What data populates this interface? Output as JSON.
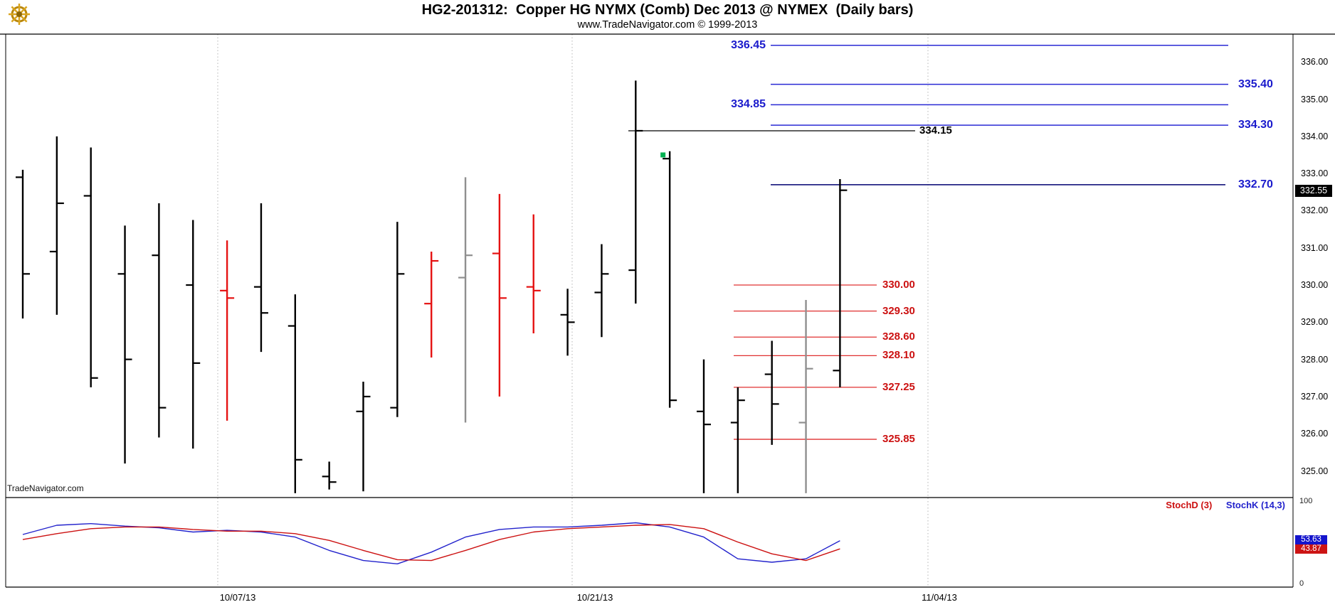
{
  "header": {
    "title": "HG2-201312:  Copper HG NYMX (Comb) Dec 2013 @ NYMEX  (Daily bars)",
    "subtitle": "www.TradeNavigator.com © 1999-2013",
    "logo_icon": "tradenavigator-gold-wheel-logo"
  },
  "watermark": "TradeNavigator.com",
  "axes": {
    "price_labels": [
      "336.00",
      "335.00",
      "334.00",
      "333.00",
      "332.00",
      "331.00",
      "330.00",
      "329.00",
      "328.00",
      "327.00",
      "326.00",
      "325.00"
    ],
    "date_labels": [
      "10/07/13",
      "10/21/13",
      "11/04/13"
    ],
    "stoch_scale": {
      "top": "100",
      "bottom": "0"
    }
  },
  "badges": {
    "last_price": "332.55",
    "stoch_k": "53.63",
    "stoch_d": "43.87"
  },
  "stoch_legend": {
    "d": "StochD (3)",
    "k": "StochK (14,3)"
  },
  "colors": {
    "level_blue": "#2a2ad4",
    "level_navy": "#000070",
    "level_black": "#000000",
    "level_red": "#e03030",
    "bar_black": "#000000",
    "bar_red": "#e51212",
    "bar_gray": "#8f8f8f",
    "stoch_k": "#2222cc",
    "stoch_d": "#cc1111",
    "signal_green": "#00b050",
    "last_badge_bg": "#000000",
    "stoch_k_badge_bg": "#1414cc",
    "stoch_d_badge_bg": "#cc1414"
  },
  "chart_data": {
    "type": "bar",
    "subtype": "ohlc-daily-bars",
    "title": "HG2-201312:  Copper HG NYMX (Comb) Dec 2013 @ NYMEX  (Daily bars)",
    "symbol": "HG2-201312",
    "instrument": "Copper HG NYMX (Comb) Dec 2013 @ NYMEX",
    "interval": "Daily bars",
    "y_axis": {
      "range": [
        324.25,
        336.75
      ],
      "tick_step": 1.0,
      "tick_min": 325.0,
      "tick_max": 336.0,
      "grid": "off"
    },
    "x_axis": {
      "gridline_labels": [
        "10/07/13",
        "10/21/13",
        "11/04/13"
      ],
      "gridline_style": "dotted"
    },
    "last_price": 332.55,
    "bars": [
      {
        "o": 332.9,
        "h": 333.1,
        "l": 329.1,
        "c": 330.3,
        "color": "black"
      },
      {
        "o": 330.9,
        "h": 334.0,
        "l": 329.2,
        "c": 332.2,
        "color": "black"
      },
      {
        "o": 332.4,
        "h": 333.7,
        "l": 327.25,
        "c": 327.5,
        "color": "black"
      },
      {
        "o": 330.3,
        "h": 331.6,
        "l": 325.2,
        "c": 328.0,
        "color": "black"
      },
      {
        "o": 330.8,
        "h": 332.2,
        "l": 325.9,
        "c": 326.7,
        "color": "black"
      },
      {
        "o": 330.0,
        "h": 331.75,
        "l": 325.6,
        "c": 327.9,
        "color": "black"
      },
      {
        "o": 329.85,
        "h": 331.2,
        "l": 326.35,
        "c": 329.65,
        "color": "red"
      },
      {
        "o": 329.95,
        "h": 332.2,
        "l": 328.2,
        "c": 329.25,
        "color": "black"
      },
      {
        "o": 328.9,
        "h": 329.75,
        "l": 324.4,
        "c": 325.3,
        "color": "black"
      },
      {
        "o": 324.85,
        "h": 325.25,
        "l": 324.5,
        "c": 324.7,
        "color": "black"
      },
      {
        "o": 326.6,
        "h": 327.4,
        "l": 324.45,
        "c": 327.0,
        "color": "black"
      },
      {
        "o": 326.7,
        "h": 331.7,
        "l": 326.45,
        "c": 330.3,
        "color": "black"
      },
      {
        "o": 329.5,
        "h": 330.9,
        "l": 328.05,
        "c": 330.65,
        "color": "red"
      },
      {
        "o": 330.2,
        "h": 332.9,
        "l": 326.3,
        "c": 330.8,
        "color": "gray"
      },
      {
        "o": 330.85,
        "h": 332.45,
        "l": 327.0,
        "c": 329.65,
        "color": "red"
      },
      {
        "o": 329.95,
        "h": 331.9,
        "l": 328.7,
        "c": 329.85,
        "color": "red"
      },
      {
        "o": 329.2,
        "h": 329.9,
        "l": 328.1,
        "c": 329.0,
        "color": "black"
      },
      {
        "o": 329.8,
        "h": 331.1,
        "l": 328.6,
        "c": 330.3,
        "color": "black"
      },
      {
        "o": 330.4,
        "h": 335.5,
        "l": 329.5,
        "c": 334.15,
        "color": "black"
      },
      {
        "o": 333.4,
        "h": 333.6,
        "l": 326.7,
        "c": 326.9,
        "color": "black"
      },
      {
        "o": 326.6,
        "h": 328.0,
        "l": 324.4,
        "c": 326.25,
        "color": "black"
      },
      {
        "o": 326.3,
        "h": 327.25,
        "l": 324.4,
        "c": 326.9,
        "color": "black"
      },
      {
        "o": 327.6,
        "h": 328.5,
        "l": 325.7,
        "c": 326.8,
        "color": "black"
      },
      {
        "o": 326.3,
        "h": 329.6,
        "l": 324.4,
        "c": 327.75,
        "color": "gray"
      },
      {
        "o": 327.7,
        "h": 332.85,
        "l": 327.25,
        "c": 332.55,
        "color": "black"
      }
    ],
    "signal_marker": {
      "bar_index": 19,
      "price": 333.5,
      "color": "#00b050",
      "shape": "square"
    },
    "levels": [
      {
        "label": "336.45",
        "price": 336.45,
        "family": "blue",
        "label_side": "left"
      },
      {
        "label": "335.40",
        "price": 335.4,
        "family": "blue",
        "label_side": "right"
      },
      {
        "label": "334.85",
        "price": 334.85,
        "family": "blue",
        "label_side": "left"
      },
      {
        "label": "334.30",
        "price": 334.3,
        "family": "blue",
        "label_side": "right"
      },
      {
        "label": "334.15",
        "price": 334.15,
        "family": "black",
        "label_side": "right"
      },
      {
        "label": "332.70",
        "price": 332.7,
        "family": "navy",
        "label_side": "right"
      },
      {
        "label": "330.00",
        "price": 330.0,
        "family": "red",
        "label_side": "right"
      },
      {
        "label": "329.30",
        "price": 329.3,
        "family": "red",
        "label_side": "right"
      },
      {
        "label": "328.60",
        "price": 328.6,
        "family": "red",
        "label_side": "right"
      },
      {
        "label": "328.10",
        "price": 328.1,
        "family": "red",
        "label_side": "right"
      },
      {
        "label": "327.25",
        "price": 327.25,
        "family": "red",
        "label_side": "right"
      },
      {
        "label": "325.85",
        "price": 325.85,
        "family": "red",
        "label_side": "right"
      }
    ],
    "stochastic": {
      "type": "line",
      "range": [
        0,
        100
      ],
      "series": [
        {
          "name": "StochK (14,3)",
          "color": "#2222cc",
          "last": 53.63,
          "values": [
            61,
            72,
            74,
            71,
            69,
            64,
            66,
            64,
            58,
            42,
            30,
            26,
            40,
            58,
            67,
            70,
            70,
            72,
            75,
            70,
            58,
            32,
            28,
            32,
            53.63
          ]
        },
        {
          "name": "StochD (3)",
          "color": "#cc1111",
          "last": 43.87,
          "values": [
            55,
            62,
            68,
            70,
            70,
            67,
            65,
            65,
            62,
            54,
            42,
            31,
            30,
            42,
            55,
            64,
            68,
            70,
            72,
            73,
            68,
            52,
            38,
            30,
            43.87
          ]
        }
      ]
    }
  }
}
